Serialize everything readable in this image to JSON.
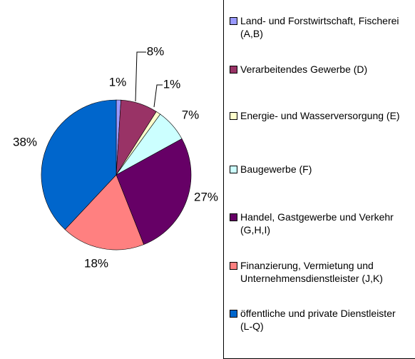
{
  "chart_data": {
    "type": "pie",
    "series": [
      {
        "name": "Land- und Forstwirtschaft, Fischerei (A,B)",
        "color": "#9999ff",
        "values": [
          1
        ],
        "value_labels": [
          "1%"
        ]
      },
      {
        "name": "Verarbeitendes Gewerbe (D)",
        "color": "#993366",
        "values": [
          8
        ],
        "value_labels": [
          "8%"
        ]
      },
      {
        "name": "Energie- und Wasserversorgung (E)",
        "color": "#ffffcc",
        "values": [
          1
        ],
        "value_labels": [
          "1%"
        ]
      },
      {
        "name": "Baugewerbe (F)",
        "color": "#ccffff",
        "values": [
          7
        ],
        "value_labels": [
          "7%"
        ]
      },
      {
        "name": "Handel, Gastgewerbe und Verkehr (G,H,I)",
        "color": "#660066",
        "values": [
          27
        ],
        "value_labels": [
          "27%"
        ]
      },
      {
        "name": "Finanzierung, Vermietung und Unternehmensdienstleister (J,K)",
        "color": "#ff8080",
        "values": [
          18
        ],
        "value_labels": [
          "18%"
        ]
      },
      {
        "name": "öffentliche und private Dienstleister (L-Q)",
        "color": "#0066cc",
        "values": [
          38
        ],
        "value_labels": [
          "38%"
        ]
      }
    ]
  }
}
